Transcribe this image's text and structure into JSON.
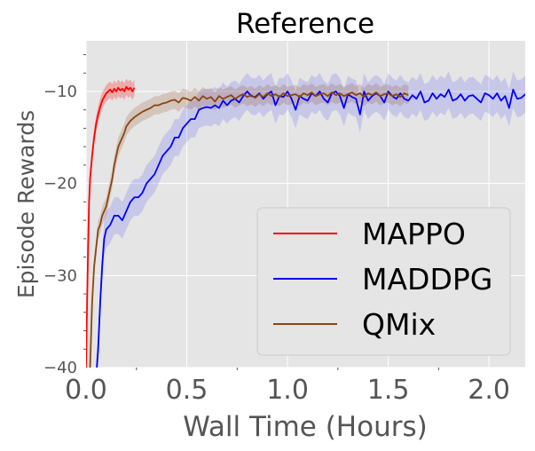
{
  "chart_data": {
    "type": "line",
    "title": "Reference",
    "xlabel": "Wall Time (Hours)",
    "ylabel": "Episode Rewards",
    "xlim": [
      0.0,
      2.18
    ],
    "ylim": [
      -40,
      -4.5
    ],
    "xticks": [
      0.0,
      0.5,
      1.0,
      1.5,
      2.0
    ],
    "xtick_labels": [
      "0.0",
      "0.5",
      "1.0",
      "1.5",
      "2.0"
    ],
    "yticks": [
      -40,
      -30,
      -20,
      -10
    ],
    "ytick_labels": [
      "−40",
      "−30",
      "−20",
      "−10"
    ],
    "grid": true,
    "legend_position": "lower-right",
    "background_color": "#e5e5e5",
    "series": [
      {
        "name": "MAPPO",
        "color": "#ff0000",
        "band_opacity": 0.25,
        "band_width": 0.9,
        "points": [
          [
            0.0,
            -40
          ],
          [
            0.005,
            -33
          ],
          [
            0.01,
            -27
          ],
          [
            0.015,
            -22
          ],
          [
            0.02,
            -19.5
          ],
          [
            0.03,
            -17
          ],
          [
            0.04,
            -15
          ],
          [
            0.05,
            -13.5
          ],
          [
            0.06,
            -12.5
          ],
          [
            0.07,
            -11.7
          ],
          [
            0.08,
            -11.0
          ],
          [
            0.09,
            -10.6
          ],
          [
            0.1,
            -10.2
          ],
          [
            0.11,
            -10.0
          ],
          [
            0.12,
            -9.8
          ],
          [
            0.13,
            -10.1
          ],
          [
            0.14,
            -9.7
          ],
          [
            0.15,
            -10.0
          ],
          [
            0.16,
            -9.6
          ],
          [
            0.17,
            -9.9
          ],
          [
            0.18,
            -9.7
          ],
          [
            0.19,
            -10.0
          ],
          [
            0.2,
            -9.5
          ],
          [
            0.21,
            -9.8
          ],
          [
            0.22,
            -9.6
          ],
          [
            0.23,
            -10.0
          ],
          [
            0.24,
            -9.6
          ]
        ]
      },
      {
        "name": "MADDPG",
        "color": "#0000ff",
        "band_opacity": 0.13,
        "band_width": 2.0,
        "points": [
          [
            0.05,
            -41
          ],
          [
            0.06,
            -38
          ],
          [
            0.07,
            -33
          ],
          [
            0.08,
            -29
          ],
          [
            0.09,
            -26
          ],
          [
            0.1,
            -25
          ],
          [
            0.12,
            -24.5
          ],
          [
            0.14,
            -23.5
          ],
          [
            0.16,
            -23.5
          ],
          [
            0.18,
            -24
          ],
          [
            0.2,
            -23
          ],
          [
            0.22,
            -22
          ],
          [
            0.24,
            -21.5
          ],
          [
            0.26,
            -21.5
          ],
          [
            0.28,
            -21
          ],
          [
            0.3,
            -20
          ],
          [
            0.32,
            -19.5
          ],
          [
            0.34,
            -19
          ],
          [
            0.36,
            -18
          ],
          [
            0.38,
            -17
          ],
          [
            0.4,
            -16.5
          ],
          [
            0.42,
            -16
          ],
          [
            0.44,
            -15
          ],
          [
            0.46,
            -15
          ],
          [
            0.48,
            -14
          ],
          [
            0.5,
            -13.5
          ],
          [
            0.52,
            -13
          ],
          [
            0.54,
            -13
          ],
          [
            0.56,
            -12
          ],
          [
            0.58,
            -11.8
          ],
          [
            0.6,
            -11.7
          ],
          [
            0.62,
            -11.8
          ],
          [
            0.64,
            -11.5
          ],
          [
            0.66,
            -11.8
          ],
          [
            0.68,
            -11.0
          ],
          [
            0.7,
            -11.5
          ],
          [
            0.72,
            -11.0
          ],
          [
            0.74,
            -10.8
          ],
          [
            0.76,
            -11.2
          ],
          [
            0.78,
            -10.5
          ],
          [
            0.8,
            -10.0
          ],
          [
            0.82,
            -10.5
          ],
          [
            0.84,
            -10.6
          ],
          [
            0.86,
            -10.2
          ],
          [
            0.88,
            -10.8
          ],
          [
            0.9,
            -10.3
          ],
          [
            0.92,
            -10.0
          ],
          [
            0.94,
            -11.5
          ],
          [
            0.96,
            -10.5
          ],
          [
            0.98,
            -10.6
          ],
          [
            1.0,
            -10.0
          ],
          [
            1.02,
            -10.8
          ],
          [
            1.04,
            -12.0
          ],
          [
            1.06,
            -10.5
          ],
          [
            1.08,
            -10.8
          ],
          [
            1.1,
            -11.0
          ],
          [
            1.12,
            -10.2
          ],
          [
            1.14,
            -10.5
          ],
          [
            1.16,
            -10.0
          ],
          [
            1.18,
            -10.8
          ],
          [
            1.2,
            -11.2
          ],
          [
            1.22,
            -10.2
          ],
          [
            1.24,
            -10.0
          ],
          [
            1.26,
            -10.5
          ],
          [
            1.28,
            -11.8
          ],
          [
            1.3,
            -10.3
          ],
          [
            1.32,
            -10.6
          ],
          [
            1.34,
            -10.8
          ],
          [
            1.36,
            -12.5
          ],
          [
            1.38,
            -10.0
          ],
          [
            1.4,
            -11.0
          ],
          [
            1.42,
            -10.5
          ],
          [
            1.44,
            -10.2
          ],
          [
            1.46,
            -10.5
          ],
          [
            1.48,
            -11.2
          ],
          [
            1.5,
            -10.0
          ],
          [
            1.52,
            -10.5
          ],
          [
            1.54,
            -10.8
          ],
          [
            1.56,
            -10.2
          ],
          [
            1.58,
            -10.8
          ],
          [
            1.6,
            -11.0
          ],
          [
            1.62,
            -10.4
          ],
          [
            1.64,
            -10.8
          ],
          [
            1.66,
            -10.0
          ],
          [
            1.68,
            -11.2
          ],
          [
            1.7,
            -11.0
          ],
          [
            1.72,
            -10.2
          ],
          [
            1.74,
            -10.8
          ],
          [
            1.76,
            -10.3
          ],
          [
            1.78,
            -10.6
          ],
          [
            1.8,
            -9.8
          ],
          [
            1.82,
            -11.0
          ],
          [
            1.84,
            -10.8
          ],
          [
            1.86,
            -10.3
          ],
          [
            1.88,
            -11.0
          ],
          [
            1.9,
            -10.5
          ],
          [
            1.92,
            -10.4
          ],
          [
            1.94,
            -10.8
          ],
          [
            1.96,
            -11.2
          ],
          [
            1.98,
            -10.2
          ],
          [
            2.0,
            -10.4
          ],
          [
            2.02,
            -10.8
          ],
          [
            2.04,
            -10.2
          ],
          [
            2.06,
            -11.0
          ],
          [
            2.08,
            -10.5
          ],
          [
            2.1,
            -11.8
          ],
          [
            2.12,
            -9.8
          ],
          [
            2.14,
            -10.8
          ],
          [
            2.16,
            -10.7
          ],
          [
            2.18,
            -10.3
          ]
        ]
      },
      {
        "name": "QMix",
        "color": "#8b4513",
        "band_opacity": 0.2,
        "band_width": 1.0,
        "points": [
          [
            0.02,
            -40
          ],
          [
            0.03,
            -33
          ],
          [
            0.04,
            -29
          ],
          [
            0.05,
            -27
          ],
          [
            0.06,
            -25
          ],
          [
            0.07,
            -24.5
          ],
          [
            0.08,
            -23.5
          ],
          [
            0.09,
            -23
          ],
          [
            0.1,
            -22.5
          ],
          [
            0.11,
            -21.5
          ],
          [
            0.12,
            -20.5
          ],
          [
            0.13,
            -19.5
          ],
          [
            0.14,
            -18
          ],
          [
            0.15,
            -17
          ],
          [
            0.16,
            -16
          ],
          [
            0.17,
            -15.5
          ],
          [
            0.18,
            -15
          ],
          [
            0.19,
            -14.5
          ],
          [
            0.2,
            -13.8
          ],
          [
            0.21,
            -13.5
          ],
          [
            0.22,
            -13.2
          ],
          [
            0.24,
            -12.8
          ],
          [
            0.26,
            -12.5
          ],
          [
            0.28,
            -12.2
          ],
          [
            0.3,
            -12.0
          ],
          [
            0.32,
            -11.8
          ],
          [
            0.34,
            -11.5
          ],
          [
            0.36,
            -11.5
          ],
          [
            0.38,
            -11.3
          ],
          [
            0.4,
            -11.2
          ],
          [
            0.42,
            -11.0
          ],
          [
            0.44,
            -10.9
          ],
          [
            0.46,
            -11.2
          ],
          [
            0.48,
            -10.7
          ],
          [
            0.5,
            -10.8
          ],
          [
            0.52,
            -11.0
          ],
          [
            0.54,
            -10.6
          ],
          [
            0.56,
            -11.0
          ],
          [
            0.58,
            -10.5
          ],
          [
            0.6,
            -10.8
          ],
          [
            0.62,
            -10.6
          ],
          [
            0.64,
            -11.1
          ],
          [
            0.66,
            -10.5
          ],
          [
            0.68,
            -10.8
          ],
          [
            0.7,
            -10.6
          ],
          [
            0.72,
            -10.4
          ],
          [
            0.74,
            -10.8
          ],
          [
            0.76,
            -10.5
          ],
          [
            0.78,
            -10.3
          ],
          [
            0.8,
            -10.6
          ],
          [
            0.82,
            -10.4
          ],
          [
            0.84,
            -10.7
          ],
          [
            0.86,
            -10.3
          ],
          [
            0.88,
            -10.6
          ],
          [
            0.9,
            -10.2
          ],
          [
            0.92,
            -10.5
          ],
          [
            0.94,
            -10.3
          ],
          [
            0.96,
            -10.6
          ],
          [
            0.98,
            -10.2
          ],
          [
            1.0,
            -10.5
          ],
          [
            1.02,
            -10.4
          ],
          [
            1.04,
            -10.3
          ],
          [
            1.06,
            -10.6
          ],
          [
            1.08,
            -10.2
          ],
          [
            1.1,
            -10.4
          ],
          [
            1.12,
            -10.1
          ],
          [
            1.14,
            -10.5
          ],
          [
            1.16,
            -10.3
          ],
          [
            1.18,
            -10.2
          ],
          [
            1.2,
            -10.5
          ],
          [
            1.22,
            -10.1
          ],
          [
            1.24,
            -10.4
          ],
          [
            1.26,
            -10.2
          ],
          [
            1.28,
            -10.5
          ],
          [
            1.3,
            -10.3
          ],
          [
            1.32,
            -10.1
          ],
          [
            1.34,
            -10.4
          ],
          [
            1.36,
            -10.2
          ],
          [
            1.38,
            -10.6
          ],
          [
            1.4,
            -10.2
          ],
          [
            1.42,
            -10.4
          ],
          [
            1.44,
            -10.1
          ],
          [
            1.46,
            -10.5
          ],
          [
            1.48,
            -10.3
          ],
          [
            1.5,
            -10.2
          ],
          [
            1.52,
            -10.5
          ],
          [
            1.54,
            -10.3
          ],
          [
            1.56,
            -10.6
          ],
          [
            1.58,
            -10.2
          ],
          [
            1.6,
            -10.4
          ]
        ]
      }
    ]
  }
}
